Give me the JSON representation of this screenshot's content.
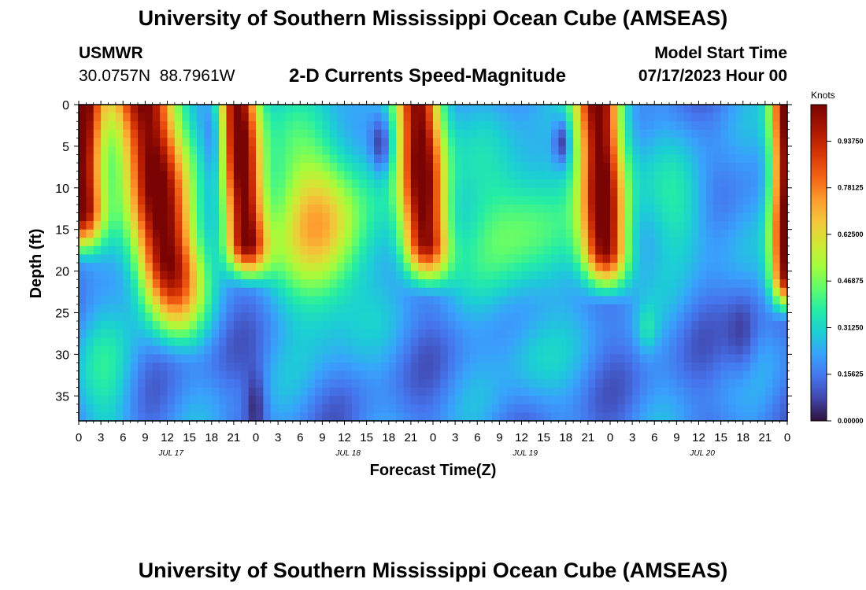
{
  "header": {
    "title": "University of Southern Mississippi Ocean Cube (AMSEAS)",
    "station": "USMWR",
    "coords": "30.0757N  88.7961W",
    "subtitle": "2-D Currents Speed-Magnitude",
    "model_start_label": "Model Start Time",
    "model_start_value": "07/17/2023 Hour 00"
  },
  "footer": {
    "title": "University of Southern Mississippi Ocean Cube (AMSEAS)"
  },
  "chart_data": {
    "type": "heatmap",
    "title": "2-D Currents Speed-Magnitude",
    "xlabel": "Forecast Time(Z)",
    "ylabel": "Depth (ft)",
    "x_ticks": [
      "0",
      "3",
      "6",
      "9",
      "12",
      "15",
      "18",
      "21",
      "0",
      "3",
      "6",
      "9",
      "12",
      "15",
      "18",
      "21",
      "0",
      "3",
      "6",
      "9",
      "12",
      "15",
      "18",
      "21",
      "0",
      "3",
      "6",
      "9",
      "12",
      "15",
      "18",
      "21",
      "0"
    ],
    "day_labels": [
      "JUL 17",
      "JUL 18",
      "JUL 19",
      "JUL 20"
    ],
    "y_ticks": [
      "0",
      "5",
      "10",
      "15",
      "20",
      "25",
      "30",
      "35"
    ],
    "xlim_hours": [
      0,
      96
    ],
    "ylim_ft": [
      0,
      38
    ],
    "y_inverted": true,
    "colorbar": {
      "title": "Knots",
      "ticks": [
        "0.00000",
        "0.15625",
        "0.31250",
        "0.46875",
        "0.62500",
        "0.78125",
        "0.93750"
      ],
      "range": [
        0,
        1.06
      ],
      "colormap": "turbo"
    },
    "features": [
      {
        "hour": 0.3,
        "depth_from": 0,
        "depth_to": 16,
        "speed": 1.0
      },
      {
        "hour": 9,
        "depth_from": 0,
        "depth_to": 28,
        "speed": 1.0
      },
      {
        "hour": 18.5,
        "depth_from": 0,
        "depth_to": 10,
        "speed": 0.12
      },
      {
        "hour": 21.5,
        "depth_from": 0,
        "depth_to": 20,
        "speed": 1.0
      },
      {
        "hour": 33,
        "depth_from": 5,
        "depth_to": 24,
        "speed": 0.75
      },
      {
        "hour": 41,
        "depth_from": 3,
        "depth_to": 7,
        "speed": 0.05
      },
      {
        "hour": 46,
        "depth_from": 0,
        "depth_to": 20,
        "speed": 1.0
      },
      {
        "hour": 59,
        "depth_from": 8,
        "depth_to": 20,
        "speed": 0.47
      },
      {
        "hour": 65.5,
        "depth_from": 2,
        "depth_to": 6,
        "speed": 0.0
      },
      {
        "hour": 70.5,
        "depth_from": 0,
        "depth_to": 22,
        "speed": 1.0
      },
      {
        "hour": 95.5,
        "depth_from": 0,
        "depth_to": 24,
        "speed": 1.0
      }
    ]
  }
}
